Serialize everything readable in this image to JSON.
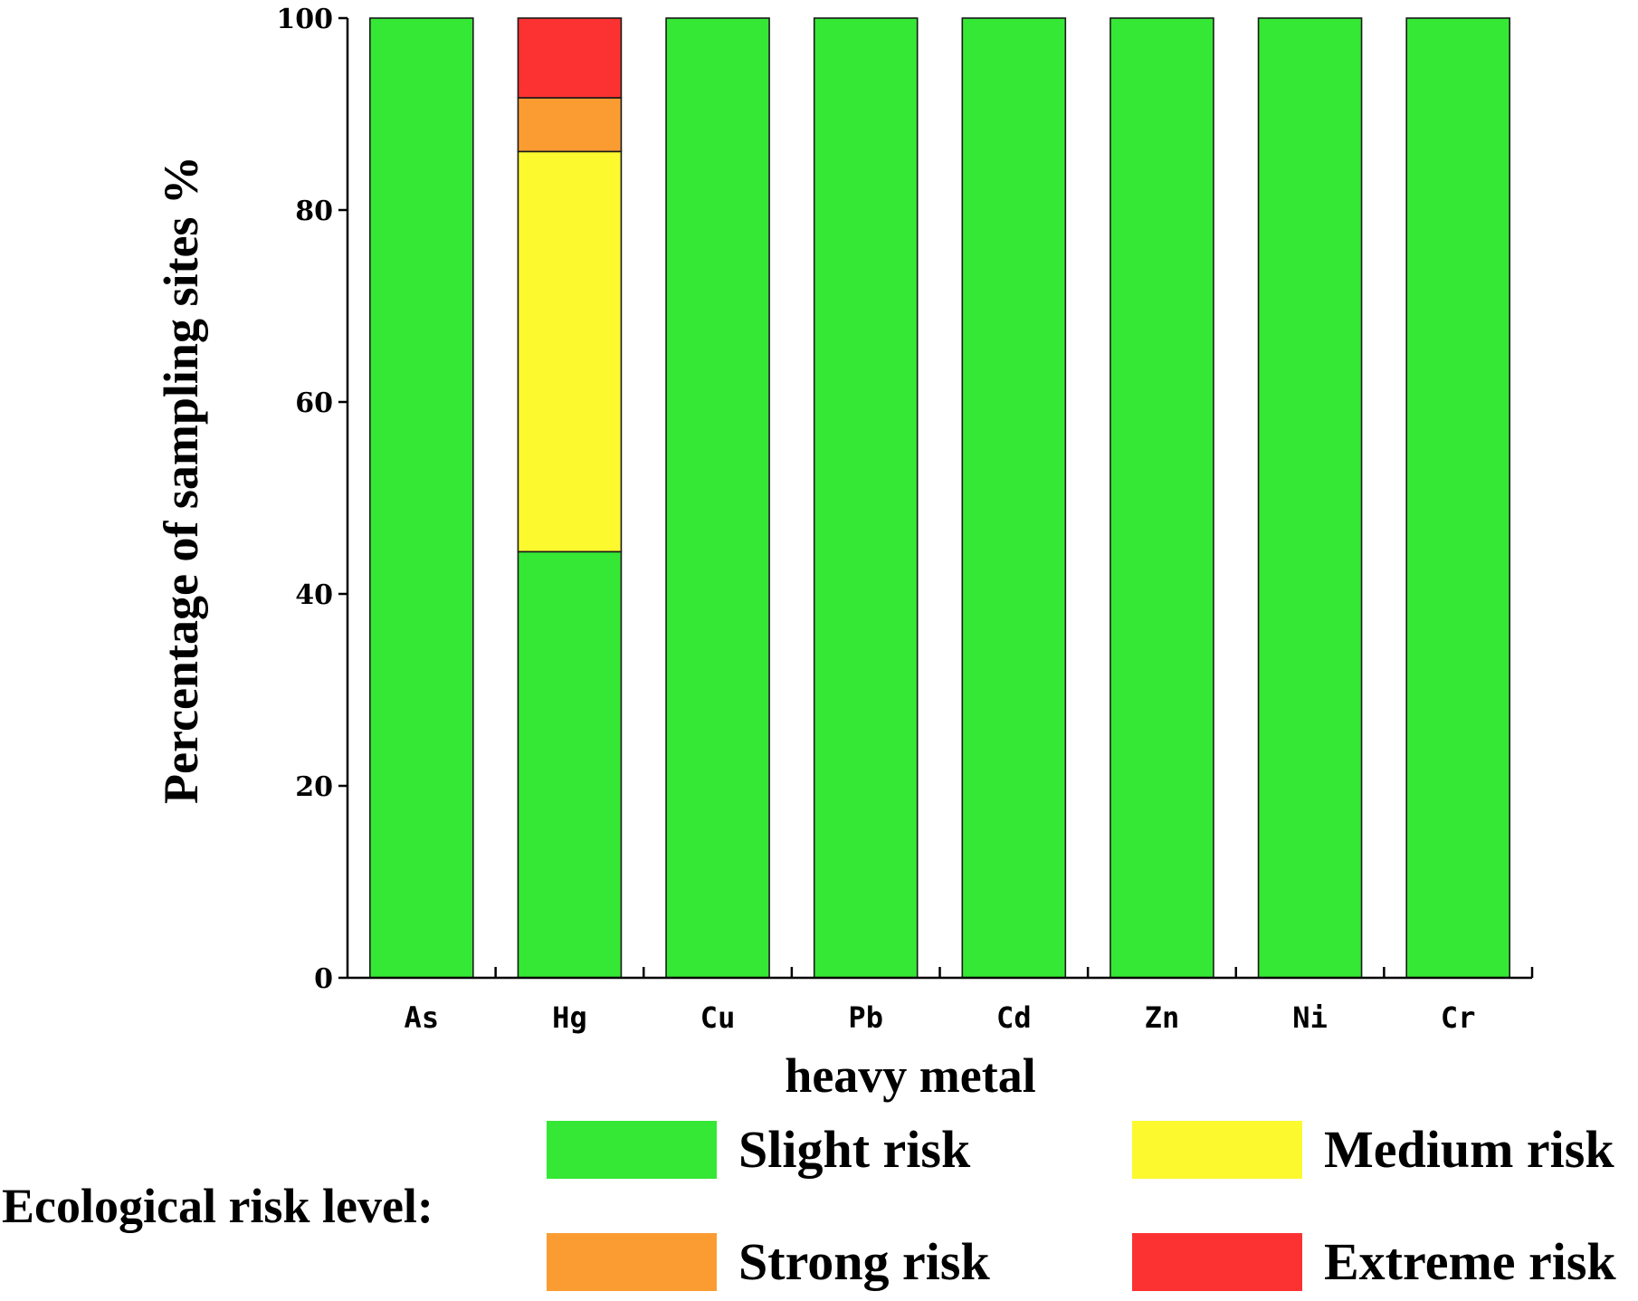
{
  "chart_data": {
    "type": "bar",
    "stacked": true,
    "categories": [
      "As",
      "Hg",
      "Cu",
      "Pb",
      "Cd",
      "Zn",
      "Ni",
      "Cr"
    ],
    "series": [
      {
        "name": "Slight risk",
        "color": "#35e835",
        "values": [
          100,
          44.4,
          100,
          100,
          100,
          100,
          100,
          100
        ]
      },
      {
        "name": "Medium risk",
        "color": "#fcf92f",
        "values": [
          0,
          41.7,
          0,
          0,
          0,
          0,
          0,
          0
        ]
      },
      {
        "name": "Strong risk",
        "color": "#fb9c33",
        "values": [
          0,
          5.6,
          0,
          0,
          0,
          0,
          0,
          0
        ]
      },
      {
        "name": "Extreme risk",
        "color": "#fc3232",
        "values": [
          0,
          8.3,
          0,
          0,
          0,
          0,
          0,
          0
        ]
      }
    ],
    "ylim": [
      0,
      100
    ],
    "yticks": [
      0,
      20,
      40,
      60,
      80,
      100
    ],
    "xlabel": "heavy metal",
    "ylabel": "Percentage of sampling sites %",
    "legend_title": "Ecological risk level:",
    "legend_placement": "bottom",
    "grid": false
  }
}
